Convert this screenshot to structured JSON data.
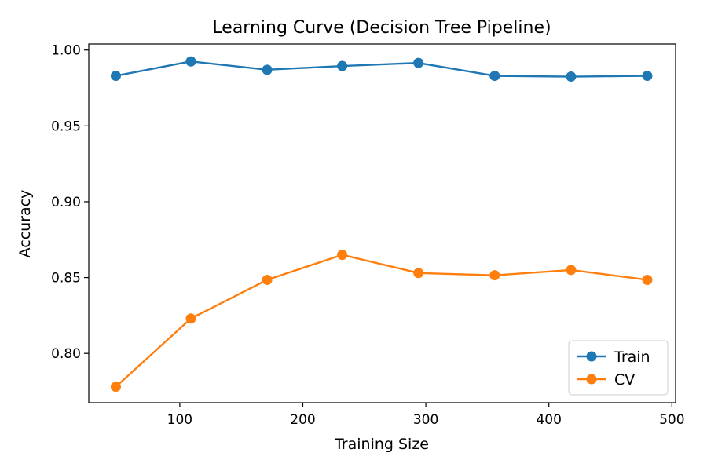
{
  "chart_data": {
    "type": "line",
    "title": "Learning Curve (Decision Tree Pipeline)",
    "xlabel": "Training Size",
    "ylabel": "Accuracy",
    "xlim": [
      26,
      503
    ],
    "ylim": [
      0.7675,
      1.004
    ],
    "xticks": [
      100,
      200,
      300,
      400,
      500
    ],
    "yticks": [
      0.8,
      0.85,
      0.9,
      0.95,
      1.0
    ],
    "x": [
      48,
      109,
      171,
      232,
      294,
      356,
      418,
      480
    ],
    "series": [
      {
        "name": "Train",
        "color": "#1f77b4",
        "values": [
          0.983,
          0.9925,
          0.987,
          0.9895,
          0.9915,
          0.983,
          0.9825,
          0.983
        ]
      },
      {
        "name": "CV",
        "color": "#ff7f0e",
        "values": [
          0.778,
          0.823,
          0.8485,
          0.865,
          0.853,
          0.8515,
          0.855,
          0.8485
        ]
      }
    ],
    "legend_position": "lower-right",
    "grid": false
  }
}
